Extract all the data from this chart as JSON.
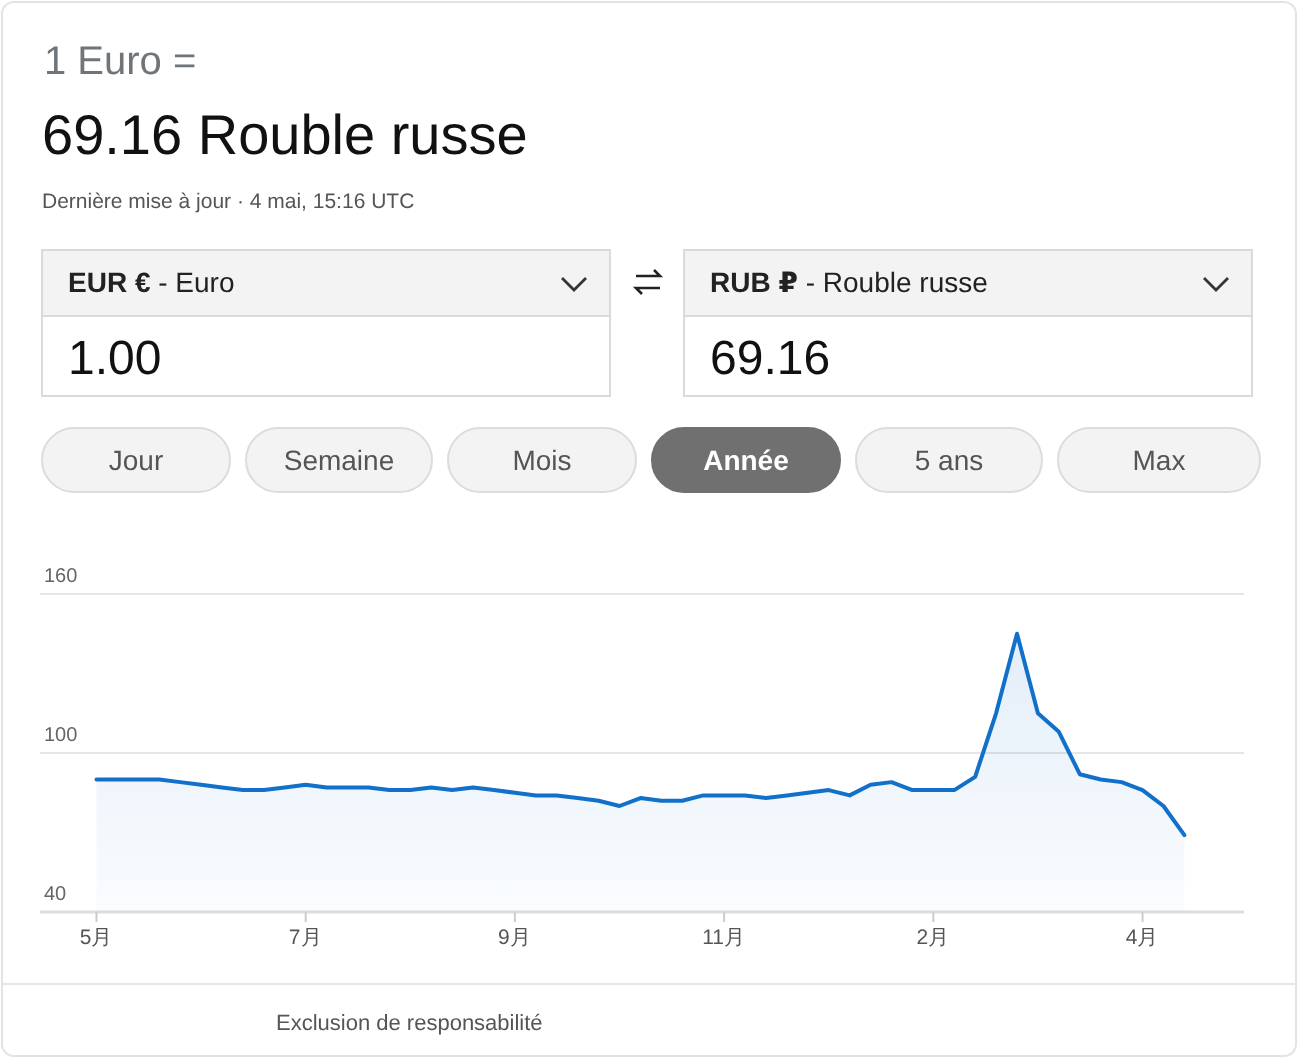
{
  "chart_data": {
    "type": "area",
    "title": "1 Euro =",
    "subtitle": "69.16 Rouble russe",
    "annotations": [
      "Dernière mise à jour · 4 mai, 15:16 UTC",
      "EUR € - Euro",
      "1.00",
      "RUB ₽ - Rouble russe",
      "69.16",
      "Jour",
      "Semaine",
      "Mois",
      "Année",
      "5 ans",
      "Max",
      "Exclusion de responsabilité"
    ],
    "categories": [
      "5月",
      null,
      null,
      null,
      null,
      null,
      null,
      null,
      null,
      null,
      "7月",
      null,
      null,
      null,
      null,
      null,
      null,
      null,
      null,
      null,
      "9月",
      null,
      null,
      null,
      null,
      null,
      null,
      null,
      null,
      null,
      "11月",
      null,
      null,
      null,
      null,
      null,
      null,
      null,
      null,
      null,
      "2月",
      null,
      null,
      null,
      null,
      null,
      null,
      null,
      null,
      null,
      "4月",
      null,
      null
    ],
    "ylim": [
      40,
      160
    ],
    "yticks": [
      40,
      100,
      160
    ],
    "grid": "y",
    "series": [
      {
        "color": "#1170c9",
        "values": [
          90,
          90,
          90,
          90,
          89,
          88,
          87,
          86,
          86,
          87,
          88,
          87,
          87,
          87,
          86,
          86,
          87,
          86,
          87,
          86,
          85,
          84,
          84,
          83,
          82,
          80,
          83,
          82,
          82,
          84,
          84,
          84,
          83,
          84,
          85,
          86,
          84,
          88,
          89,
          86,
          86,
          86,
          91,
          115,
          145,
          115,
          108,
          92,
          90,
          89,
          86,
          80,
          69
        ]
      }
    ]
  }
}
